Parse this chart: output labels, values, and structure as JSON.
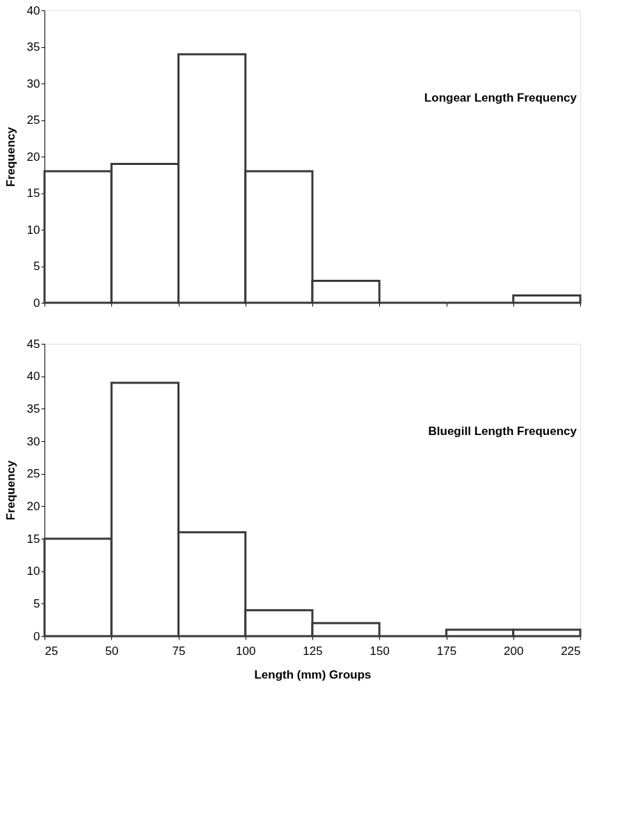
{
  "chart_data": [
    {
      "type": "histogram",
      "ylabel": "Frequency",
      "annotations": [
        "Longear Length Frequency"
      ],
      "bins": [
        25,
        50,
        75,
        100,
        125,
        150,
        175,
        200,
        225
      ],
      "values": [
        18,
        19,
        34,
        18,
        3,
        0,
        0,
        1
      ],
      "color": "#3a3a3a",
      "xlim": [
        25,
        225
      ],
      "xticks": [
        25,
        50,
        75,
        100,
        125,
        150,
        175,
        200,
        225
      ],
      "ylim": [
        0,
        40
      ],
      "yticks": [
        0,
        5,
        10,
        15,
        20,
        25,
        30,
        35,
        40
      ],
      "grid": false,
      "tick_labels": "y"
    },
    {
      "type": "histogram",
      "xlabel": "Length (mm) Groups",
      "ylabel": "Frequency",
      "annotations": [
        "Bluegill Length Frequency"
      ],
      "bins": [
        25,
        50,
        75,
        100,
        125,
        150,
        175,
        200,
        225
      ],
      "values": [
        15,
        39,
        16,
        4,
        2,
        0,
        1,
        1
      ],
      "color": "#3a3a3a",
      "xlim": [
        25,
        225
      ],
      "xticks": [
        25,
        50,
        75,
        100,
        125,
        150,
        175,
        200,
        225
      ],
      "ylim": [
        0,
        45
      ],
      "yticks": [
        0,
        5,
        10,
        15,
        20,
        25,
        30,
        35,
        40,
        45
      ],
      "grid": false
    }
  ]
}
